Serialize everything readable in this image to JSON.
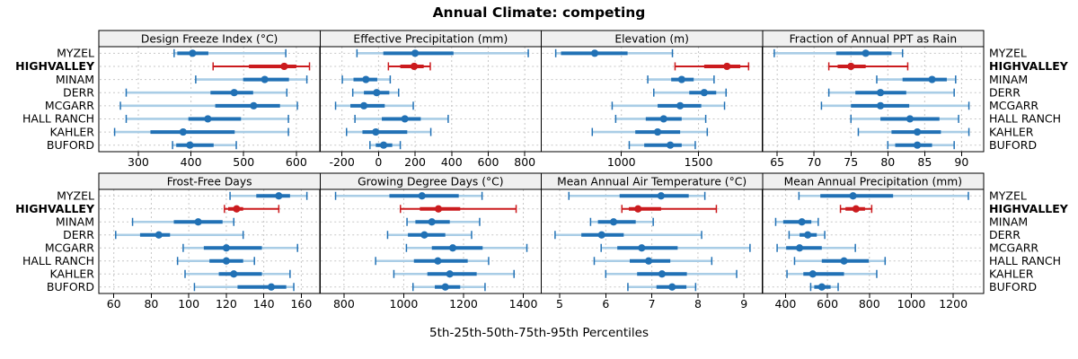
{
  "page": {
    "title": "Annual Climate: competing",
    "caption": "5th-25th-50th-75th-95th Percentiles"
  },
  "colors": {
    "blue": "#2171b5",
    "blue_light": "#a9cde6",
    "red": "#cb1b1e",
    "red_light": "#cb1b1e",
    "strip_bg": "#f0f0f0",
    "grid": "#c7c7c7",
    "border": "#000000"
  },
  "stations": [
    "MYZEL",
    "HIGHVALLEY",
    "MINAM",
    "DERR",
    "MCGARR",
    "HALL RANCH",
    "KAHLER",
    "BUFORD"
  ],
  "highlight_station": "HIGHVALLEY",
  "chart_data": {
    "type": "dot-whisker trellis (lattice percentile plot)",
    "note": "each row shows [5th, 25th, 50th, 75th, 95th] percentiles; thin line 5th-95th with end caps, thick bar 25th-75th, dot at median",
    "grid": "on, dashed",
    "panels": [
      {
        "title": "Design Freeze Index (°C)",
        "band": "top",
        "col": 0,
        "ticks": [
          300,
          400,
          500,
          600
        ],
        "xlim": [
          225,
          645
        ],
        "values": [
          [
            368,
            374,
            403,
            433,
            580
          ],
          [
            442,
            510,
            577,
            600,
            625
          ],
          [
            409,
            499,
            540,
            586,
            620
          ],
          [
            277,
            437,
            482,
            518,
            582
          ],
          [
            266,
            446,
            519,
            569,
            602
          ],
          [
            277,
            395,
            432,
            495,
            585
          ],
          [
            255,
            323,
            385,
            483,
            585
          ],
          [
            365,
            372,
            398,
            443,
            486
          ]
        ]
      },
      {
        "title": "Effective Precipitation (mm)",
        "band": "top",
        "col": 1,
        "ticks": [
          -200,
          0,
          200,
          400,
          600,
          800
        ],
        "xlim": [
          -320,
          890
        ],
        "values": [
          [
            -118,
            26,
            200,
            410,
            819
          ],
          [
            54,
            119,
            195,
            247,
            283
          ],
          [
            -198,
            -137,
            -69,
            -7,
            64
          ],
          [
            -141,
            -80,
            -10,
            59,
            110
          ],
          [
            -235,
            -154,
            -80,
            34,
            190
          ],
          [
            -129,
            18,
            144,
            231,
            381
          ],
          [
            -175,
            -88,
            -15,
            157,
            286
          ],
          [
            -47,
            -15,
            28,
            75,
            119
          ]
        ]
      },
      {
        "title": "Elevation (m)",
        "band": "top",
        "col": 2,
        "ticks": [
          1000,
          1500
        ],
        "xlim": [
          480,
          1915
        ],
        "values": [
          [
            574,
            608,
            827,
            1040,
            1331
          ],
          [
            1348,
            1537,
            1685,
            1771,
            1825
          ],
          [
            1171,
            1323,
            1391,
            1469,
            1601
          ],
          [
            1210,
            1440,
            1537,
            1615,
            1679
          ],
          [
            940,
            1235,
            1381,
            1518,
            1669
          ],
          [
            963,
            1158,
            1274,
            1391,
            1547
          ],
          [
            811,
            1090,
            1235,
            1381,
            1557
          ],
          [
            1051,
            1148,
            1317,
            1391,
            1479
          ]
        ]
      },
      {
        "title": "Fraction of Annual PPT as Rain",
        "band": "top",
        "col": 3,
        "ticks": [
          65,
          70,
          75,
          80,
          85,
          90
        ],
        "xlim": [
          63,
          93
        ],
        "values": [
          [
            64.6,
            73,
            77,
            80.5,
            82
          ],
          [
            72,
            73.2,
            75,
            77,
            82.7
          ],
          [
            78.5,
            82,
            86,
            88,
            89.2
          ],
          [
            72,
            75.6,
            79,
            82.5,
            89
          ],
          [
            71,
            75,
            79,
            82.9,
            91
          ],
          [
            75,
            79,
            83,
            87,
            89.6
          ],
          [
            76,
            80.5,
            84,
            87.2,
            91
          ],
          [
            80,
            81,
            84,
            86,
            89
          ]
        ]
      },
      {
        "title": "Frost-Free Days",
        "band": "bottom",
        "col": 0,
        "ticks": [
          60,
          80,
          100,
          120,
          140,
          160
        ],
        "xlim": [
          52,
          170
        ],
        "values": [
          [
            122,
            136,
            148,
            154,
            163
          ],
          [
            119,
            121,
            125.5,
            129,
            148
          ],
          [
            70,
            92,
            105,
            118,
            124
          ],
          [
            61,
            74,
            84,
            90,
            129
          ],
          [
            97,
            108,
            120,
            139,
            158
          ],
          [
            94,
            111,
            120,
            129,
            135
          ],
          [
            98,
            116,
            124,
            139,
            154
          ],
          [
            103,
            126,
            144,
            152,
            156
          ]
        ]
      },
      {
        "title": "Growing Degree Days (°C)",
        "band": "bottom",
        "col": 1,
        "ticks": [
          800,
          1000,
          1200,
          1400
        ],
        "xlim": [
          720,
          1460
        ],
        "values": [
          [
            772,
            952,
            1061,
            1184,
            1262
          ],
          [
            989,
            1054,
            1116,
            1189,
            1376
          ],
          [
            1011,
            1039,
            1094,
            1154,
            1254
          ],
          [
            946,
            1014,
            1069,
            1139,
            1227
          ],
          [
            1009,
            1094,
            1164,
            1264,
            1412
          ],
          [
            906,
            1034,
            1114,
            1214,
            1284
          ],
          [
            967,
            1079,
            1154,
            1244,
            1369
          ],
          [
            1031,
            1104,
            1139,
            1189,
            1272
          ]
        ]
      },
      {
        "title": "Mean Annual Air Temperature (°C)",
        "band": "bottom",
        "col": 2,
        "ticks": [
          5,
          6,
          7,
          8,
          9
        ],
        "xlim": [
          4.6,
          9.4
        ],
        "values": [
          [
            5.2,
            6.3,
            7.2,
            7.8,
            8.15
          ],
          [
            6.35,
            6.5,
            6.7,
            7.2,
            8.4
          ],
          [
            5.67,
            5.83,
            6.17,
            6.65,
            7.03
          ],
          [
            4.9,
            5.47,
            5.91,
            6.39,
            8.08
          ],
          [
            5.9,
            6.25,
            6.78,
            7.56,
            9.13
          ],
          [
            5.75,
            6.52,
            6.93,
            7.4,
            8.3
          ],
          [
            6.0,
            6.68,
            7.22,
            7.76,
            8.84
          ],
          [
            6.48,
            7.1,
            7.44,
            7.75,
            7.95
          ]
        ]
      },
      {
        "title": "Mean Annual Precipitation (mm)",
        "band": "bottom",
        "col": 3,
        "ticks": [
          400,
          600,
          800,
          1000,
          1200
        ],
        "xlim": [
          290,
          1345
        ],
        "values": [
          [
            464,
            566,
            722,
            913,
            1272
          ],
          [
            662,
            686,
            736,
            779,
            811
          ],
          [
            353,
            389,
            478,
            523,
            556
          ],
          [
            417,
            467,
            506,
            549,
            587
          ],
          [
            360,
            403,
            467,
            573,
            733
          ],
          [
            443,
            573,
            679,
            797,
            875
          ],
          [
            407,
            485,
            530,
            679,
            835
          ],
          [
            520,
            537,
            573,
            615,
            651
          ]
        ]
      }
    ]
  }
}
